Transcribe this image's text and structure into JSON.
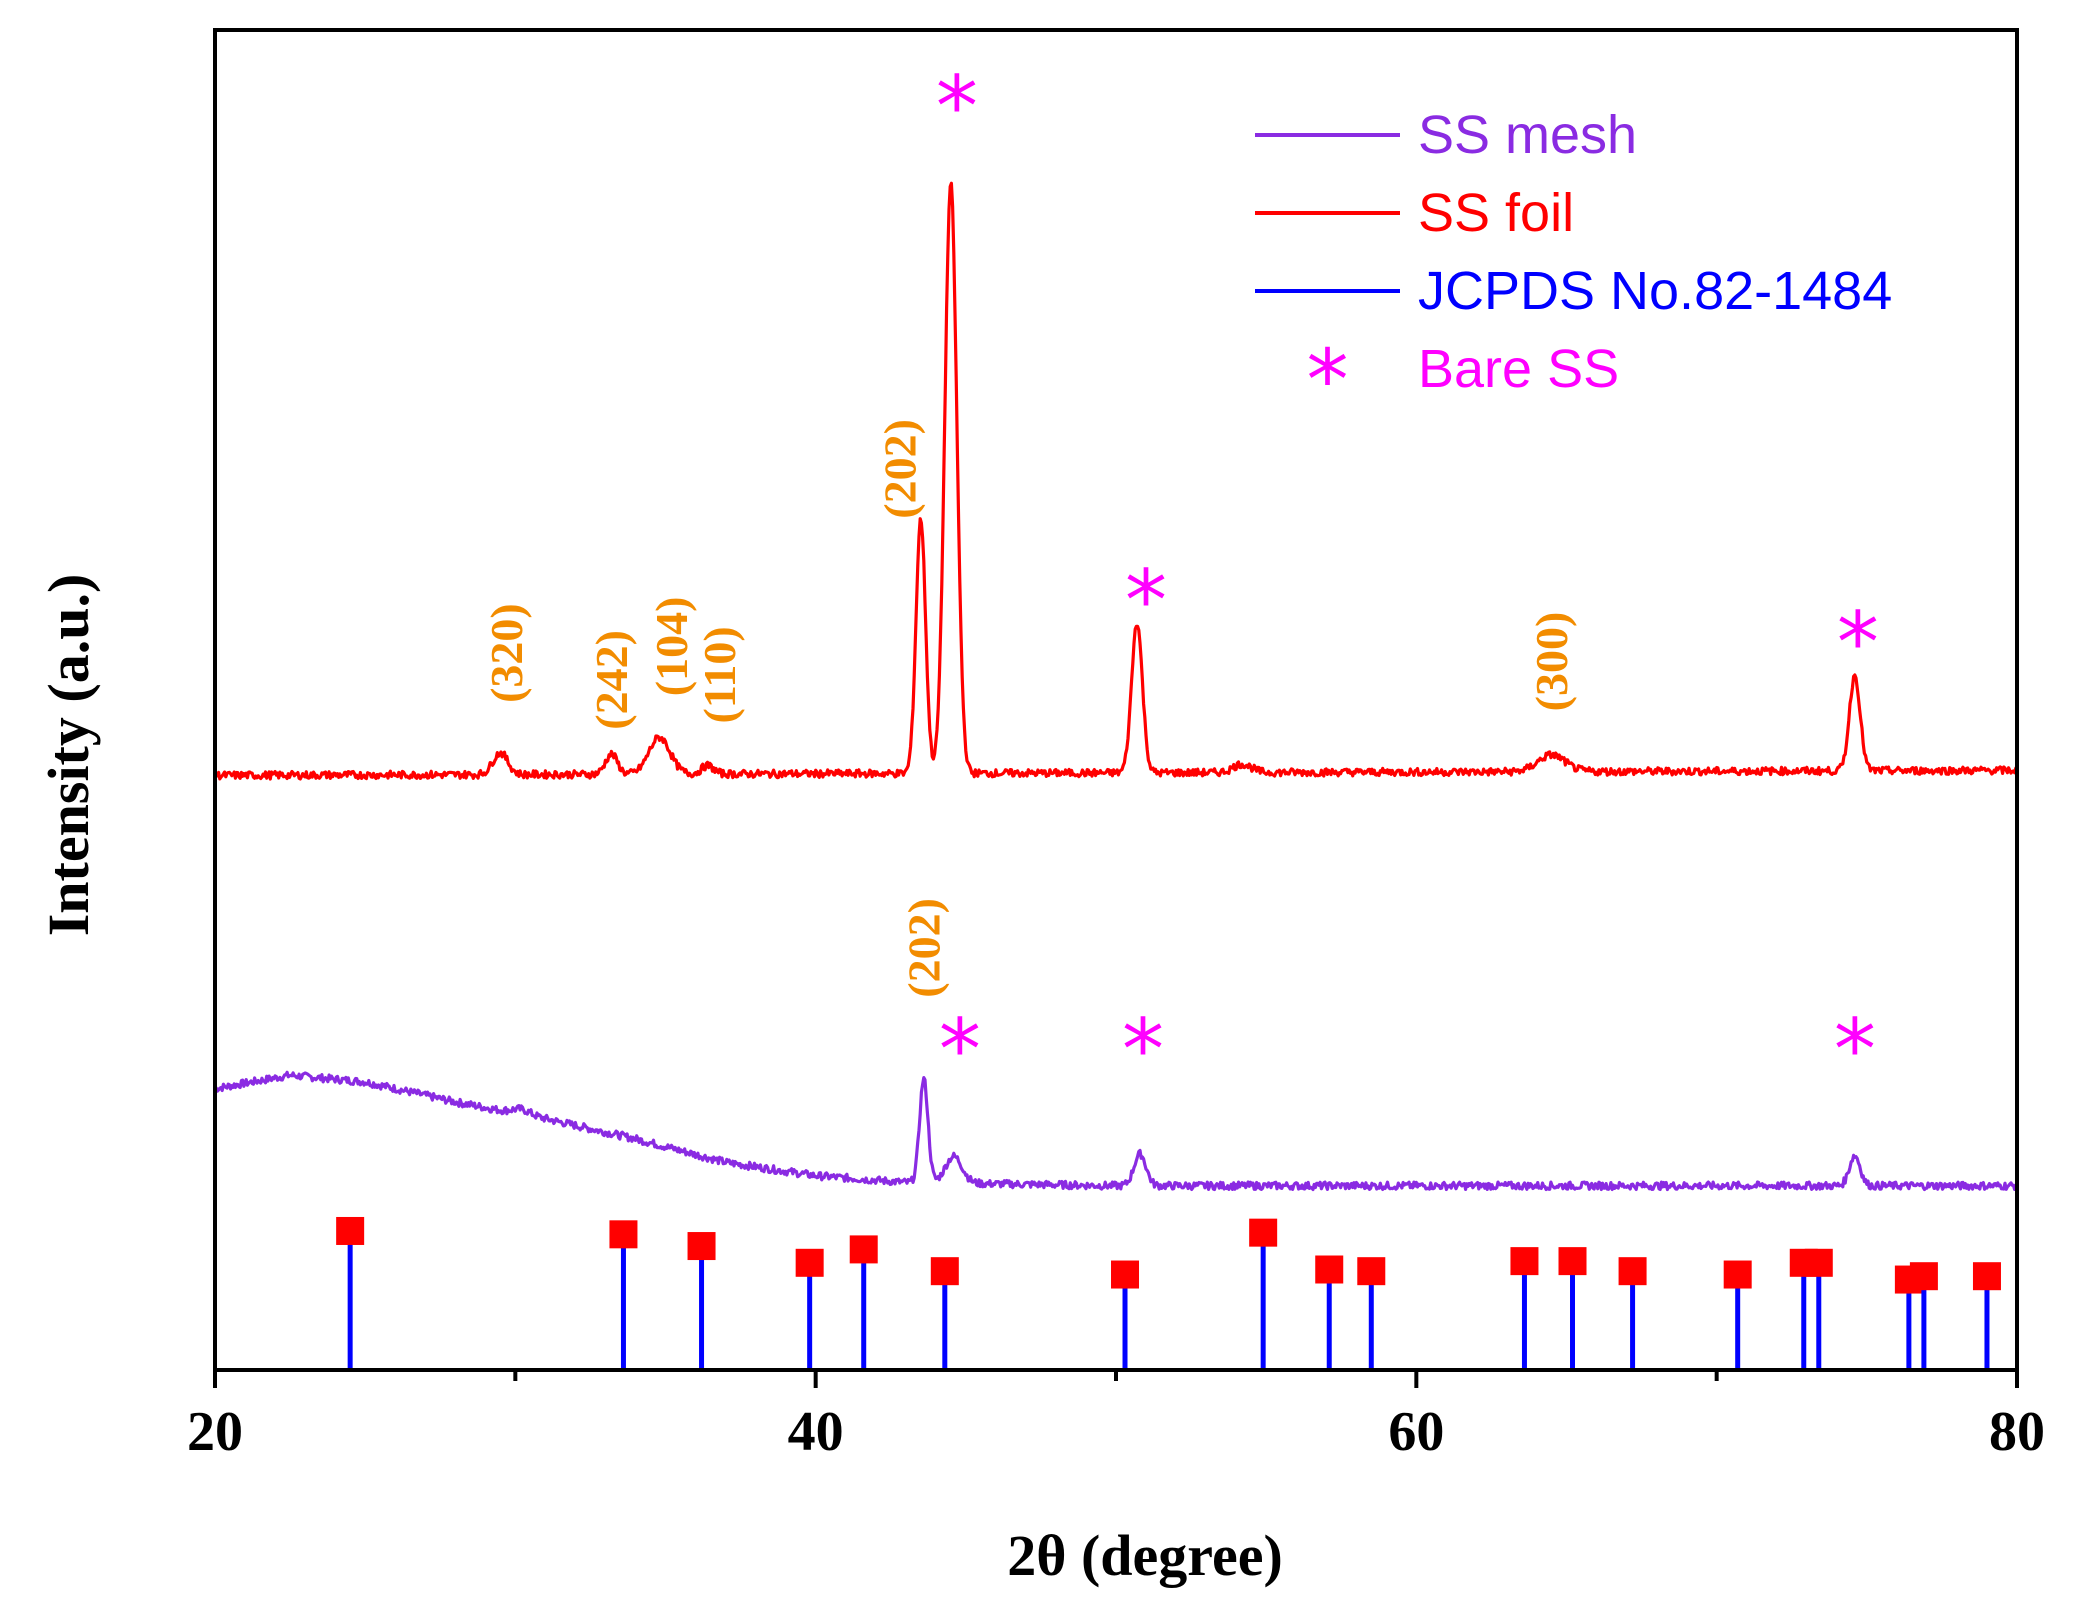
{
  "chart_data": {
    "type": "line",
    "xlabel": "2θ (degree)",
    "ylabel": "Intensity (a.u.)",
    "xlim": [
      20,
      80
    ],
    "x_ticks": [
      20,
      40,
      60,
      80
    ],
    "x_minor_ticks": [
      30,
      50,
      70
    ],
    "grid": false,
    "legend_position": "top-right",
    "y_tick_labels": "none",
    "series": [
      {
        "name": "SS mesh",
        "color": "#8a2be2",
        "style": "line",
        "baseline": [
          [
            20,
            1.68
          ],
          [
            22.5,
            1.76
          ],
          [
            25,
            1.72
          ],
          [
            28,
            1.6
          ],
          [
            31,
            1.5
          ],
          [
            34,
            1.38
          ],
          [
            37,
            1.24
          ],
          [
            40,
            1.16
          ],
          [
            43,
            1.12
          ],
          [
            50,
            1.1
          ],
          [
            60,
            1.1
          ],
          [
            70,
            1.1
          ],
          [
            80,
            1.1
          ]
        ],
        "peaks": [
          {
            "x": 43.6,
            "height": 0.62,
            "width": 0.14
          },
          {
            "x": 44.6,
            "height": 0.16,
            "width": 0.28
          },
          {
            "x": 50.8,
            "height": 0.19,
            "width": 0.2
          },
          {
            "x": 74.6,
            "height": 0.18,
            "width": 0.18
          },
          {
            "x": 30.2,
            "height": 0.03,
            "width": 0.3
          }
        ]
      },
      {
        "name": "SS foil",
        "color": "#ff0000",
        "style": "line",
        "baseline": [
          [
            20,
            3.55
          ],
          [
            80,
            3.58
          ]
        ],
        "peaks": [
          {
            "x": 29.5,
            "height": 0.13,
            "width": 0.25
          },
          {
            "x": 33.2,
            "height": 0.12,
            "width": 0.2
          },
          {
            "x": 34.8,
            "height": 0.22,
            "width": 0.35
          },
          {
            "x": 36.4,
            "height": 0.05,
            "width": 0.2
          },
          {
            "x": 43.5,
            "height": 1.52,
            "width": 0.16
          },
          {
            "x": 44.5,
            "height": 3.52,
            "width": 0.2
          },
          {
            "x": 50.7,
            "height": 0.9,
            "width": 0.18
          },
          {
            "x": 54.2,
            "height": 0.05,
            "width": 0.3
          },
          {
            "x": 64.5,
            "height": 0.1,
            "width": 0.45
          },
          {
            "x": 74.6,
            "height": 0.57,
            "width": 0.18
          }
        ]
      },
      {
        "name": "JCPDS No.82-1484",
        "color": "#0000ff",
        "style": "stick",
        "marker_color": "#ff0000",
        "lines": [
          {
            "x": 24.5,
            "value": 0.83
          },
          {
            "x": 33.6,
            "value": 0.81
          },
          {
            "x": 36.2,
            "value": 0.74
          },
          {
            "x": 39.8,
            "value": 0.64
          },
          {
            "x": 41.6,
            "value": 0.72
          },
          {
            "x": 44.3,
            "value": 0.59
          },
          {
            "x": 50.3,
            "value": 0.57
          },
          {
            "x": 54.9,
            "value": 0.82
          },
          {
            "x": 57.1,
            "value": 0.6
          },
          {
            "x": 58.5,
            "value": 0.59
          },
          {
            "x": 63.6,
            "value": 0.65
          },
          {
            "x": 65.2,
            "value": 0.65
          },
          {
            "x": 67.2,
            "value": 0.59
          },
          {
            "x": 70.7,
            "value": 0.57
          },
          {
            "x": 72.9,
            "value": 0.64
          },
          {
            "x": 73.4,
            "value": 0.64
          },
          {
            "x": 76.4,
            "value": 0.54
          },
          {
            "x": 76.9,
            "value": 0.56
          },
          {
            "x": 79.0,
            "value": 0.56
          }
        ]
      }
    ],
    "marker_legend": {
      "symbol": "*",
      "name": "Bare SS",
      "color": "#ff00ff"
    },
    "annotations": [
      {
        "text": "(320)",
        "x": 29.7,
        "y": 4.28,
        "type": "hkl"
      },
      {
        "text": "(242)",
        "x": 33.2,
        "y": 4.12,
        "type": "hkl"
      },
      {
        "text": "(104)",
        "x": 35.2,
        "y": 4.32,
        "type": "hkl"
      },
      {
        "text": "(110)",
        "x": 36.8,
        "y": 4.15,
        "type": "hkl"
      },
      {
        "text": "(202)",
        "x": 42.8,
        "y": 5.38,
        "type": "hkl"
      },
      {
        "text": "(300)",
        "x": 64.5,
        "y": 4.23,
        "type": "hkl"
      },
      {
        "text": "(202)",
        "x": 43.6,
        "y": 2.52,
        "type": "hkl"
      },
      {
        "text": "*",
        "x": 44.7,
        "y": 7.55,
        "type": "star"
      },
      {
        "text": "*",
        "x": 51.0,
        "y": 4.6,
        "type": "star"
      },
      {
        "text": "*",
        "x": 74.7,
        "y": 4.35,
        "type": "star"
      },
      {
        "text": "*",
        "x": 44.8,
        "y": 1.92,
        "type": "star"
      },
      {
        "text": "*",
        "x": 50.9,
        "y": 1.92,
        "type": "star"
      },
      {
        "text": "*",
        "x": 74.6,
        "y": 1.92,
        "type": "star"
      }
    ]
  }
}
